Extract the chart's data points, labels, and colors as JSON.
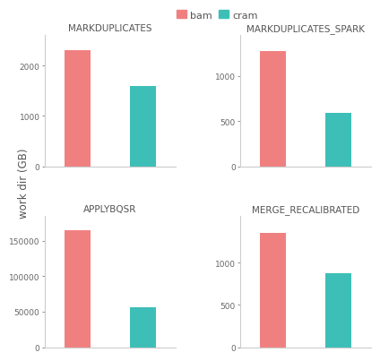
{
  "subplots": [
    {
      "title": "MARKDUPLICATES",
      "bam": 2300,
      "cram": 1600,
      "ylim": [
        0,
        2600
      ],
      "yticks": [
        0,
        1000,
        2000
      ]
    },
    {
      "title": "MARKDUPLICATES_SPARK",
      "bam": 1280,
      "cram": 590,
      "ylim": [
        0,
        1450
      ],
      "yticks": [
        0,
        500,
        1000
      ]
    },
    {
      "title": "APPLYBQSR",
      "bam": 165000,
      "cram": 56000,
      "ylim": [
        0,
        185000
      ],
      "yticks": [
        0,
        50000,
        100000,
        150000
      ]
    },
    {
      "title": "MERGE_RECALIBRATED",
      "bam": 1350,
      "cram": 870,
      "ylim": [
        0,
        1550
      ],
      "yticks": [
        0,
        500,
        1000
      ]
    }
  ],
  "bam_color": "#F08080",
  "cram_color": "#3DBFB8",
  "background_color": "#ffffff",
  "ylabel": "work dir (GB)",
  "bar_width": 0.4,
  "legend_labels": [
    "bam",
    "cram"
  ],
  "title_fontsize": 7.5,
  "tick_fontsize": 6.5,
  "ylabel_fontsize": 8.5,
  "legend_fontsize": 8
}
